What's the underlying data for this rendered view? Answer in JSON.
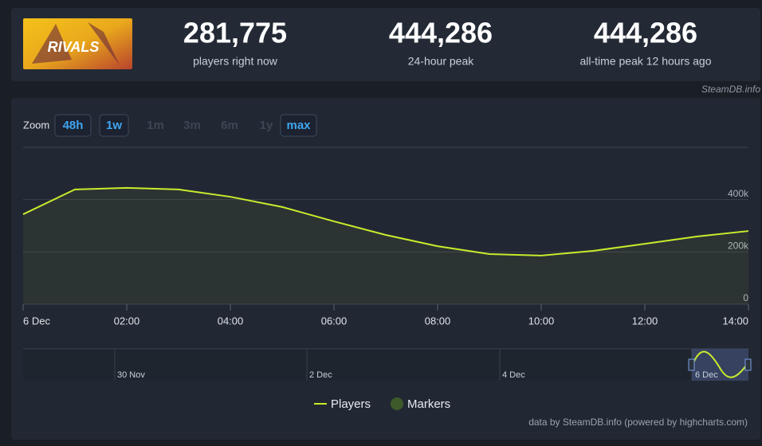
{
  "stats": [
    {
      "value": "281,775",
      "label": "players right now"
    },
    {
      "value": "444,286",
      "label": "24-hour peak"
    },
    {
      "value": "444,286",
      "label": "all-time peak 12 hours ago"
    }
  ],
  "source": "SteamDB.info",
  "zoom": {
    "label": "Zoom",
    "buttons": [
      {
        "label": "48h",
        "enabled": true
      },
      {
        "label": "1w",
        "enabled": true
      },
      {
        "label": "1m",
        "enabled": false
      },
      {
        "label": "3m",
        "enabled": false
      },
      {
        "label": "6m",
        "enabled": false
      },
      {
        "label": "1y",
        "enabled": false
      },
      {
        "label": "max",
        "enabled": true
      }
    ]
  },
  "chart_data": {
    "type": "line",
    "x": [
      0,
      1,
      2,
      3,
      4,
      5,
      6,
      7,
      8,
      9,
      10,
      11,
      12,
      13,
      14
    ],
    "series": [
      {
        "name": "Players",
        "color": "#c8ec2c",
        "values": [
          344000,
          439000,
          445000,
          439000,
          411000,
          372000,
          317000,
          265000,
          222000,
          192000,
          186000,
          204000,
          231000,
          259000,
          280000
        ]
      }
    ],
    "markers_legend": {
      "name": "Markers",
      "color": "#3e5a2a"
    },
    "xlim": [
      0,
      14
    ],
    "xticks": [
      {
        "value": 0,
        "label": "6 Dec"
      },
      {
        "value": 2,
        "label": "02:00"
      },
      {
        "value": 4,
        "label": "04:00"
      },
      {
        "value": 6,
        "label": "06:00"
      },
      {
        "value": 8,
        "label": "08:00"
      },
      {
        "value": 10,
        "label": "10:00"
      },
      {
        "value": 12,
        "label": "12:00"
      },
      {
        "value": 14,
        "label": "14:00"
      }
    ],
    "ylim": [
      0,
      600000
    ],
    "yticks": [
      0,
      {
        "value": 200000,
        "label": "200k"
      },
      {
        "value": 400000,
        "label": "400k"
      }
    ],
    "grid": true,
    "navigator_labels": [
      "30 Nov",
      "2 Dec",
      "4 Dec",
      "6 Dec"
    ],
    "credits": "data by SteamDB.info (powered by highcharts.com)"
  }
}
